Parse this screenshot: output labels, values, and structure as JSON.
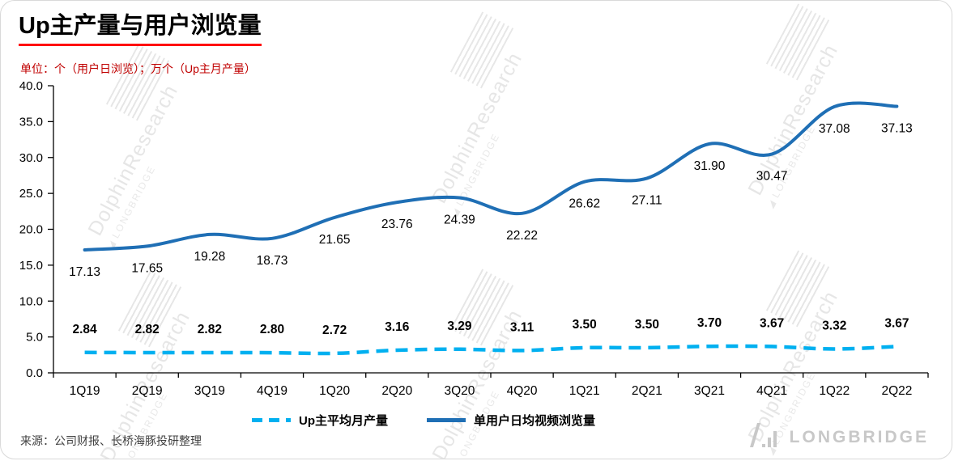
{
  "header": {
    "title": "Up主产量与用户浏览量",
    "subtitle": "单位：个（用户日浏览）；万个（Up主月产量）"
  },
  "colors": {
    "title_underline": "#ff0000",
    "subtitle_text": "#c00000",
    "solid_line": "#1f6fb5",
    "dashed_line": "#00b0f0",
    "axis": "#000000",
    "watermark": "#d2d2d2"
  },
  "chart_data": {
    "type": "line",
    "title": "Up主产量与用户浏览量",
    "categories": [
      "1Q19",
      "2Q19",
      "3Q19",
      "4Q19",
      "1Q20",
      "2Q20",
      "3Q20",
      "4Q20",
      "1Q21",
      "2Q21",
      "3Q21",
      "4Q21",
      "1Q22",
      "2Q22"
    ],
    "series": [
      {
        "name": "Up主平均月产量",
        "style": "dashed",
        "color": "#00b0f0",
        "label_position": "above",
        "label_weight": "bold",
        "values": [
          2.84,
          2.82,
          2.82,
          2.8,
          2.72,
          3.16,
          3.29,
          3.11,
          3.5,
          3.5,
          3.7,
          3.67,
          3.32,
          3.67
        ]
      },
      {
        "name": "单用户日均视频浏览量",
        "style": "solid",
        "color": "#1f6fb5",
        "label_position": "below",
        "label_weight": "normal",
        "values": [
          17.13,
          17.65,
          19.28,
          18.73,
          21.65,
          23.76,
          24.39,
          22.22,
          26.62,
          27.11,
          31.9,
          30.47,
          37.08,
          37.13
        ]
      }
    ],
    "xlabel": "",
    "ylabel": "",
    "ylim": [
      0,
      40
    ],
    "yticks": [
      0,
      5,
      10,
      15,
      20,
      25,
      30,
      35,
      40
    ],
    "grid": false,
    "legend_position": "bottom"
  },
  "watermark": {
    "research": "DolphinResearch",
    "brand": "LONGBRIDGE"
  },
  "footer": {
    "source": "来源：公司财报、长桥海豚投研整理",
    "logo_text": "LONGBRIDGE"
  }
}
